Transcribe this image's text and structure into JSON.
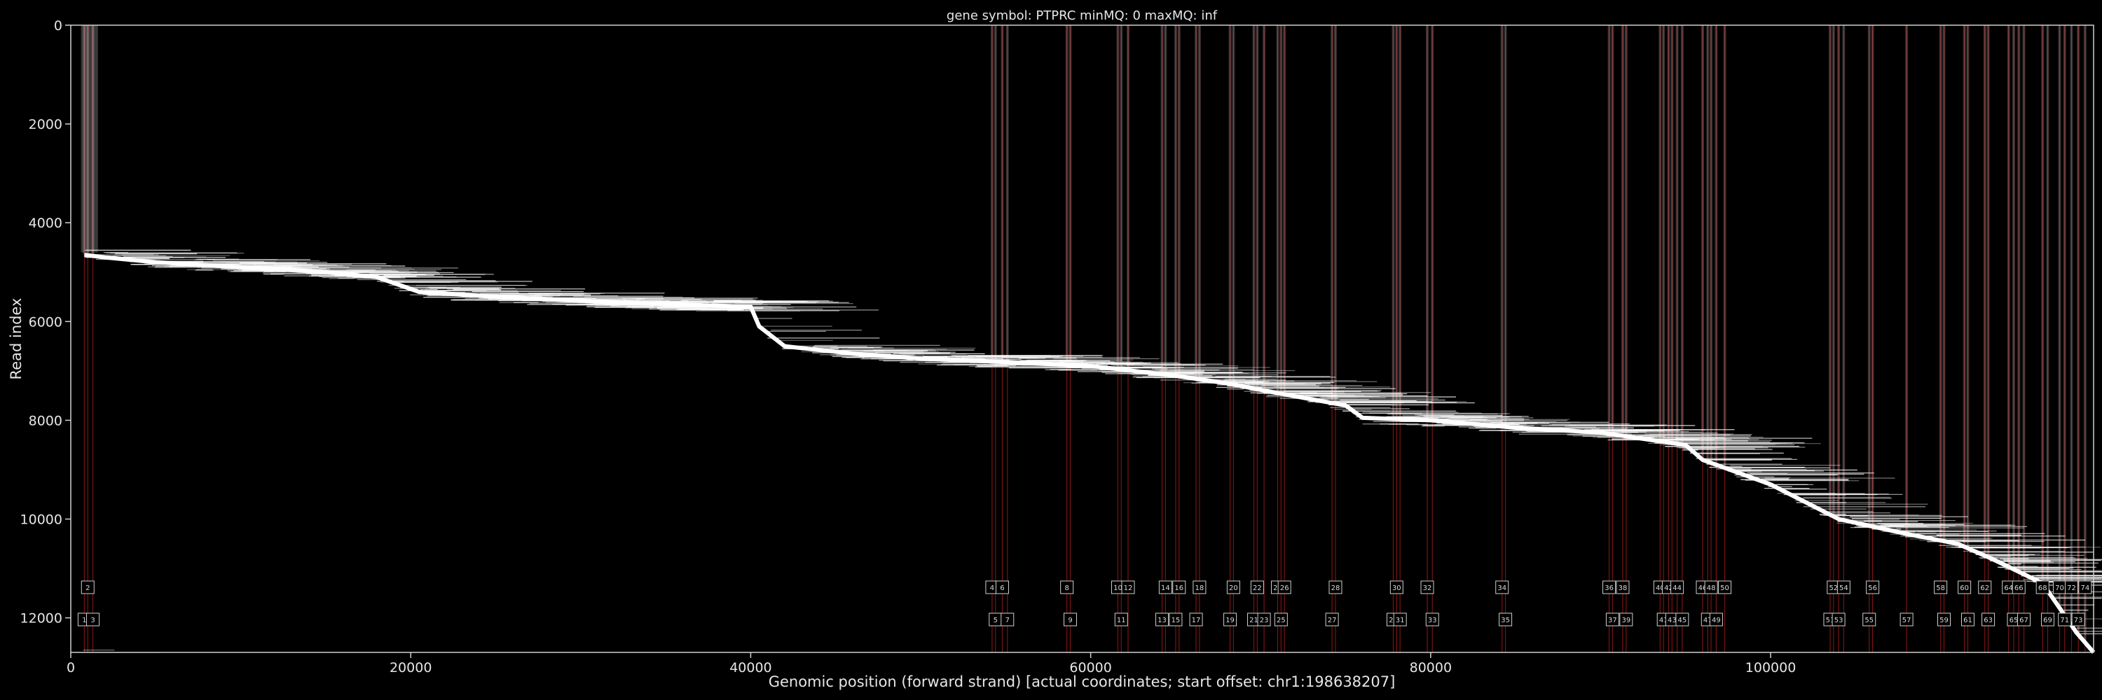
{
  "chart_data": {
    "type": "heatmap",
    "title": "gene symbol: PTPRC    minMQ: 0    maxMQ: inf",
    "xlabel": "Genomic position (forward strand) [actual coordinates; start offset: chr1:198638207]",
    "ylabel": "Read index",
    "xlim": [
      0,
      119000
    ],
    "ylim": [
      12700,
      0
    ],
    "y_inverted": true,
    "x_ticks": [
      0,
      20000,
      40000,
      60000,
      80000,
      100000
    ],
    "x_tick_labels": [
      "0",
      "20000",
      "40000",
      "60000",
      "80000",
      "100000"
    ],
    "y_ticks": [
      0,
      2000,
      4000,
      6000,
      8000,
      10000,
      12000
    ],
    "y_tick_labels": [
      "0",
      "2000",
      "4000",
      "6000",
      "8000",
      "10000",
      "12000"
    ],
    "grid": false,
    "read_diagonal": {
      "points": [
        [
          800,
          4650
        ],
        [
          2000,
          4700
        ],
        [
          5000,
          4800
        ],
        [
          10000,
          4900
        ],
        [
          15000,
          5000
        ],
        [
          18000,
          5100
        ],
        [
          20500,
          5400
        ],
        [
          25000,
          5500
        ],
        [
          30000,
          5580
        ],
        [
          35000,
          5650
        ],
        [
          40000,
          5700
        ],
        [
          40500,
          6100
        ],
        [
          42000,
          6500
        ],
        [
          46000,
          6650
        ],
        [
          50000,
          6750
        ],
        [
          55000,
          6820
        ],
        [
          60000,
          6900
        ],
        [
          65000,
          7100
        ],
        [
          68000,
          7250
        ],
        [
          71000,
          7450
        ],
        [
          75000,
          7700
        ],
        [
          76000,
          7950
        ],
        [
          80000,
          8000
        ],
        [
          85000,
          8150
        ],
        [
          90000,
          8250
        ],
        [
          95000,
          8500
        ],
        [
          96000,
          8800
        ],
        [
          100000,
          9300
        ],
        [
          104000,
          10000
        ],
        [
          108000,
          10300
        ],
        [
          111000,
          10500
        ],
        [
          113000,
          10800
        ],
        [
          116000,
          11300
        ],
        [
          118000,
          12300
        ],
        [
          119000,
          12700
        ]
      ]
    },
    "exons": {
      "numbers": [
        "1",
        "2",
        "3",
        "4",
        "5",
        "6",
        "7",
        "8",
        "9",
        "10",
        "11",
        "12",
        "13",
        "14",
        "15",
        "16",
        "17",
        "18",
        "19",
        "20",
        "21",
        "22",
        "23",
        "24",
        "25",
        "26",
        "27",
        "28",
        "29",
        "30",
        "31",
        "32",
        "33",
        "34",
        "35",
        "36",
        "37",
        "38",
        "39",
        "40",
        "41",
        "42",
        "43",
        "44",
        "45",
        "46",
        "47",
        "48",
        "49",
        "50",
        "51",
        "52",
        "53",
        "54",
        "55",
        "56",
        "57",
        "58",
        "59",
        "60",
        "61",
        "62",
        "63",
        "64",
        "65",
        "66",
        "67",
        "68",
        "69",
        "70",
        "71",
        "72",
        "73",
        "74"
      ],
      "x": [
        800,
        1000,
        1300,
        54200,
        54400,
        54800,
        55100,
        58600,
        58800,
        61600,
        61800,
        62200,
        64200,
        64400,
        65000,
        65200,
        66200,
        66400,
        68200,
        68400,
        69600,
        69800,
        70200,
        71000,
        71200,
        71400,
        74200,
        74400,
        77800,
        78000,
        78200,
        79800,
        80100,
        84200,
        84400,
        90500,
        90700,
        91300,
        91500,
        93500,
        93700,
        94000,
        94200,
        94500,
        94800,
        96000,
        96300,
        96500,
        96800,
        97300,
        103500,
        103700,
        104000,
        104300,
        105800,
        106000,
        108000,
        110000,
        110200,
        111400,
        111600,
        112600,
        112800,
        114000,
        114300,
        114600,
        114900,
        116000,
        116300,
        117000,
        117300,
        117700,
        118100,
        118500
      ]
    }
  }
}
